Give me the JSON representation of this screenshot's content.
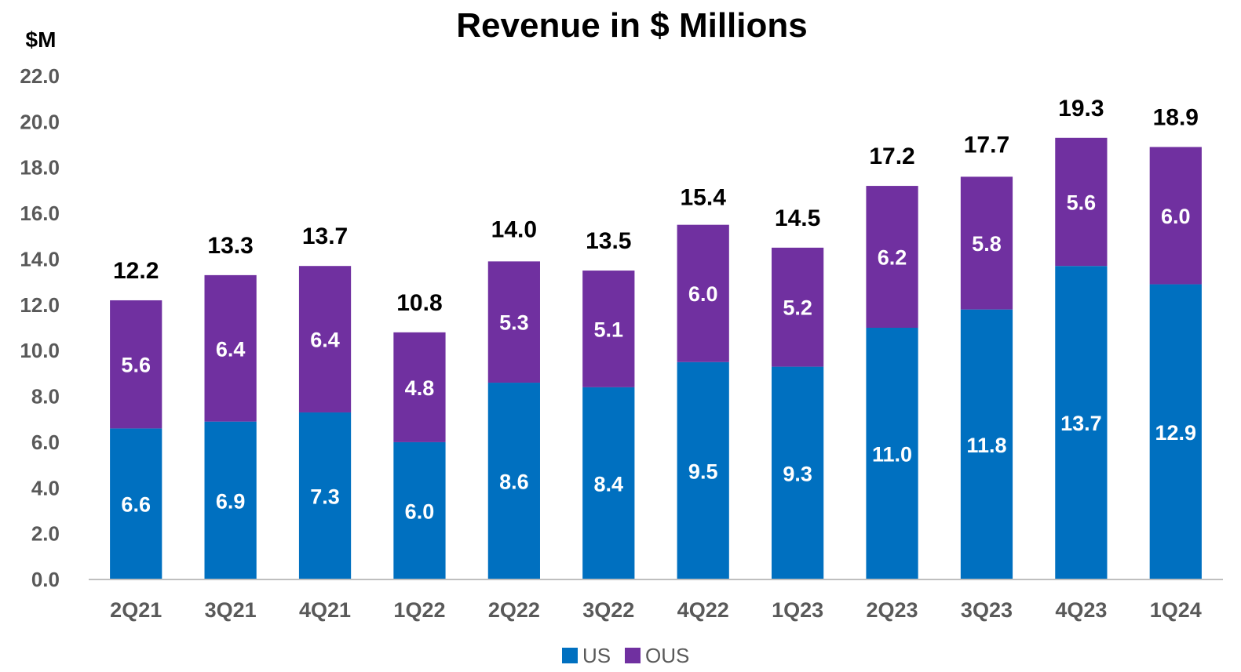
{
  "chart_data": {
    "type": "bar",
    "stacked": true,
    "title": "Revenue in $ Millions",
    "ylabel": "$M",
    "xlabel": "",
    "ylim": [
      0,
      22
    ],
    "yticks": [
      "0.0",
      "2.0",
      "4.0",
      "6.0",
      "8.0",
      "10.0",
      "12.0",
      "14.0",
      "16.0",
      "18.0",
      "20.0",
      "22.0"
    ],
    "categories": [
      "2Q21",
      "3Q21",
      "4Q21",
      "1Q22",
      "2Q22",
      "3Q22",
      "4Q22",
      "1Q23",
      "2Q23",
      "3Q23",
      "4Q23",
      "1Q24"
    ],
    "series": [
      {
        "name": "US",
        "color": "#0070C0",
        "values": [
          6.6,
          6.9,
          7.3,
          6.0,
          8.6,
          8.4,
          9.5,
          9.3,
          11.0,
          11.8,
          13.7,
          12.9
        ]
      },
      {
        "name": "OUS",
        "color": "#7030A0",
        "values": [
          5.6,
          6.4,
          6.4,
          4.8,
          5.3,
          5.1,
          6.0,
          5.2,
          6.2,
          5.8,
          5.6,
          6.0
        ]
      }
    ],
    "totals": [
      12.2,
      13.3,
      13.7,
      10.8,
      14.0,
      13.5,
      15.4,
      14.5,
      17.2,
      17.7,
      19.3,
      18.9
    ],
    "grid": false,
    "legend_position": "bottom"
  }
}
